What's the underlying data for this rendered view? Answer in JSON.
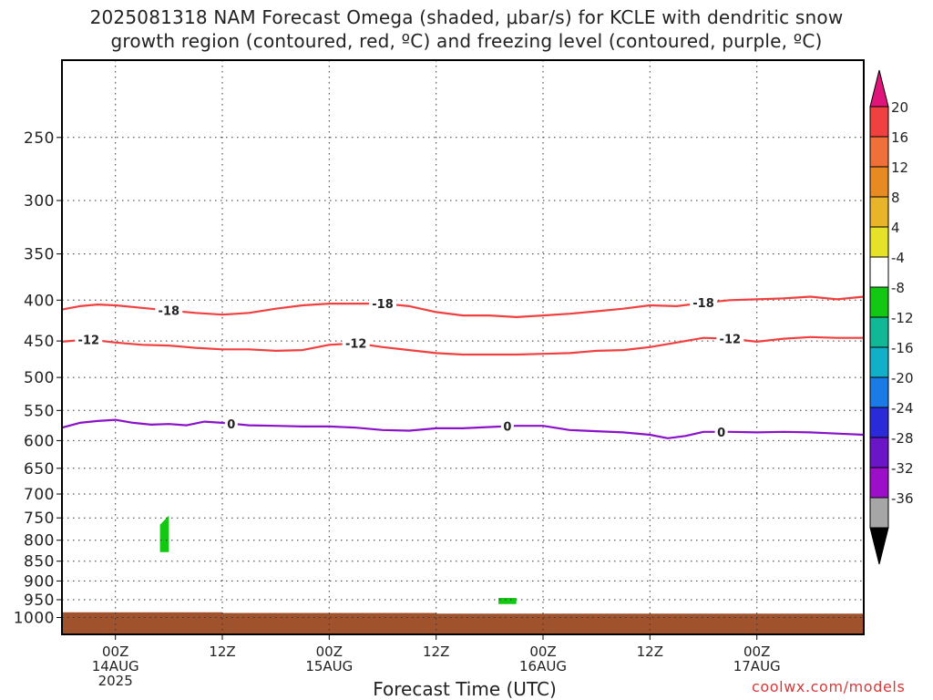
{
  "title": {
    "line1": "2025081318 NAM Forecast Omega (shaded, μbar/s) for KCLE with dendritic snow",
    "line2": "growth region (contoured, red, ºC) and freezing level (contoured, purple, ºC)"
  },
  "credit": "coolwx.com/models",
  "chart_data": {
    "type": "contour",
    "xlabel": "Forecast Time (UTC)",
    "ylabel": "",
    "y_scale": "log-pressure",
    "y_inverted": true,
    "ylim": [
      1050,
      200
    ],
    "xlim": [
      "2025-08-13T18Z",
      "2025-08-17T12Z"
    ],
    "grid": true,
    "y_ticks": [
      250,
      300,
      350,
      400,
      450,
      500,
      550,
      600,
      650,
      700,
      750,
      800,
      850,
      900,
      950,
      1000
    ],
    "x_ticks": [
      {
        "time": "2025-08-14T00Z",
        "lines": [
          "00Z",
          "14AUG",
          "2025"
        ]
      },
      {
        "time": "2025-08-14T12Z",
        "lines": [
          "12Z"
        ]
      },
      {
        "time": "2025-08-15T00Z",
        "lines": [
          "00Z",
          "15AUG"
        ]
      },
      {
        "time": "2025-08-15T12Z",
        "lines": [
          "12Z"
        ]
      },
      {
        "time": "2025-08-16T00Z",
        "lines": [
          "00Z",
          "16AUG"
        ]
      },
      {
        "time": "2025-08-16T12Z",
        "lines": [
          "12Z"
        ]
      },
      {
        "time": "2025-08-17T00Z",
        "lines": [
          "00Z",
          "17AUG"
        ]
      }
    ],
    "contours": [
      {
        "name": "-18",
        "color": "#f04040",
        "label_times": [
          "2025-08-14T06Z",
          "2025-08-15T06Z",
          "2025-08-16T18Z"
        ],
        "points": [
          [
            "2025-08-13T18Z",
            411
          ],
          [
            "2025-08-13T20Z",
            407
          ],
          [
            "2025-08-13T22Z",
            405
          ],
          [
            "2025-08-14T00Z",
            406
          ],
          [
            "2025-08-14T03Z",
            409
          ],
          [
            "2025-08-14T06Z",
            412
          ],
          [
            "2025-08-14T09Z",
            415
          ],
          [
            "2025-08-14T12Z",
            417
          ],
          [
            "2025-08-14T15Z",
            415
          ],
          [
            "2025-08-14T18Z",
            410
          ],
          [
            "2025-08-14T21Z",
            406
          ],
          [
            "2025-08-15T00Z",
            404
          ],
          [
            "2025-08-15T03Z",
            404
          ],
          [
            "2025-08-15T06Z",
            404
          ],
          [
            "2025-08-15T09Z",
            407
          ],
          [
            "2025-08-15T12Z",
            414
          ],
          [
            "2025-08-15T15Z",
            418
          ],
          [
            "2025-08-15T18Z",
            418
          ],
          [
            "2025-08-15T21Z",
            420
          ],
          [
            "2025-08-16T00Z",
            418
          ],
          [
            "2025-08-16T03Z",
            416
          ],
          [
            "2025-08-16T06Z",
            413
          ],
          [
            "2025-08-16T09Z",
            410
          ],
          [
            "2025-08-16T12Z",
            406
          ],
          [
            "2025-08-16T15Z",
            407
          ],
          [
            "2025-08-16T18Z",
            403
          ],
          [
            "2025-08-16T21Z",
            400
          ],
          [
            "2025-08-17T00Z",
            399
          ],
          [
            "2025-08-17T03Z",
            398
          ],
          [
            "2025-08-17T06Z",
            396
          ],
          [
            "2025-08-17T09Z",
            399
          ],
          [
            "2025-08-17T12Z",
            396
          ]
        ]
      },
      {
        "name": "-12",
        "color": "#f04040",
        "label_times": [
          "2025-08-13T21Z",
          "2025-08-15T03Z",
          "2025-08-16T21Z"
        ],
        "points": [
          [
            "2025-08-13T18Z",
            451
          ],
          [
            "2025-08-13T21Z",
            448
          ],
          [
            "2025-08-14T00Z",
            452
          ],
          [
            "2025-08-14T03Z",
            455
          ],
          [
            "2025-08-14T06Z",
            456
          ],
          [
            "2025-08-14T09Z",
            459
          ],
          [
            "2025-08-14T12Z",
            461
          ],
          [
            "2025-08-14T15Z",
            461
          ],
          [
            "2025-08-14T18Z",
            463
          ],
          [
            "2025-08-14T21Z",
            462
          ],
          [
            "2025-08-15T00Z",
            455
          ],
          [
            "2025-08-15T03Z",
            453
          ],
          [
            "2025-08-15T06Z",
            458
          ],
          [
            "2025-08-15T09Z",
            462
          ],
          [
            "2025-08-15T12Z",
            466
          ],
          [
            "2025-08-15T15Z",
            468
          ],
          [
            "2025-08-15T18Z",
            468
          ],
          [
            "2025-08-15T21Z",
            468
          ],
          [
            "2025-08-16T00Z",
            467
          ],
          [
            "2025-08-16T03Z",
            466
          ],
          [
            "2025-08-16T06Z",
            463
          ],
          [
            "2025-08-16T09Z",
            462
          ],
          [
            "2025-08-16T12Z",
            458
          ],
          [
            "2025-08-16T15Z",
            452
          ],
          [
            "2025-08-16T18Z",
            446
          ],
          [
            "2025-08-16T21Z",
            447
          ],
          [
            "2025-08-17T00Z",
            451
          ],
          [
            "2025-08-17T03Z",
            447
          ],
          [
            "2025-08-17T06Z",
            445
          ],
          [
            "2025-08-17T09Z",
            446
          ],
          [
            "2025-08-17T12Z",
            446
          ]
        ]
      },
      {
        "name": "0",
        "color": "#8a12c8",
        "label_times": [
          "2025-08-14T13Z",
          "2025-08-15T20Z",
          "2025-08-16T20Z"
        ],
        "points": [
          [
            "2025-08-13T18Z",
            578
          ],
          [
            "2025-08-13T20Z",
            570
          ],
          [
            "2025-08-13T22Z",
            567
          ],
          [
            "2025-08-14T00Z",
            565
          ],
          [
            "2025-08-14T02Z",
            570
          ],
          [
            "2025-08-14T04Z",
            573
          ],
          [
            "2025-08-14T06Z",
            572
          ],
          [
            "2025-08-14T08Z",
            574
          ],
          [
            "2025-08-14T10Z",
            568
          ],
          [
            "2025-08-14T12Z",
            570
          ],
          [
            "2025-08-14T15Z",
            574
          ],
          [
            "2025-08-14T18Z",
            575
          ],
          [
            "2025-08-14T21Z",
            576
          ],
          [
            "2025-08-15T00Z",
            576
          ],
          [
            "2025-08-15T03Z",
            578
          ],
          [
            "2025-08-15T06Z",
            582
          ],
          [
            "2025-08-15T09Z",
            583
          ],
          [
            "2025-08-15T12Z",
            579
          ],
          [
            "2025-08-15T15Z",
            579
          ],
          [
            "2025-08-15T18Z",
            577
          ],
          [
            "2025-08-15T21Z",
            575
          ],
          [
            "2025-08-16T00Z",
            575
          ],
          [
            "2025-08-16T03Z",
            582
          ],
          [
            "2025-08-16T06Z",
            584
          ],
          [
            "2025-08-16T09Z",
            586
          ],
          [
            "2025-08-16T12Z",
            590
          ],
          [
            "2025-08-16T14Z",
            596
          ],
          [
            "2025-08-16T16Z",
            592
          ],
          [
            "2025-08-16T18Z",
            585
          ],
          [
            "2025-08-16T21Z",
            585
          ],
          [
            "2025-08-17T00Z",
            586
          ],
          [
            "2025-08-17T03Z",
            585
          ],
          [
            "2025-08-17T06Z",
            586
          ],
          [
            "2025-08-17T09Z",
            588
          ],
          [
            "2025-08-17T12Z",
            590
          ]
        ]
      }
    ],
    "shaded_regions": [
      {
        "value_range": [
          -8,
          -4
        ],
        "color": "#13c813",
        "polygon": [
          [
            "2025-08-14T05Z",
            828
          ],
          [
            "2025-08-14T05Z",
            765
          ],
          [
            "2025-08-14T06Z",
            745
          ],
          [
            "2025-08-14T06Z",
            828
          ]
        ]
      },
      {
        "value_range": [
          -8,
          -4
        ],
        "color": "#13c813",
        "polygon": [
          [
            "2025-08-15T19Z",
            945
          ],
          [
            "2025-08-15T21Z",
            945
          ],
          [
            "2025-08-15T21Z",
            962
          ],
          [
            "2025-08-15T19Z",
            962
          ]
        ]
      }
    ],
    "terrain": {
      "color": "#a0522d",
      "surface": [
        [
          "2025-08-13T18Z",
          985
        ],
        [
          "2025-08-14T12Z",
          985
        ],
        [
          "2025-08-14T12Z",
          987
        ],
        [
          "2025-08-15T12Z",
          987
        ],
        [
          "2025-08-15T12Z",
          989
        ],
        [
          "2025-08-17T12Z",
          989
        ]
      ]
    },
    "colorbar": {
      "levels": [
        -36,
        -32,
        -28,
        -24,
        -20,
        -16,
        -12,
        -8,
        -4,
        4,
        8,
        12,
        16,
        20
      ],
      "label_values": [
        20,
        16,
        12,
        8,
        4,
        -4,
        -8,
        -12,
        -16,
        -20,
        -24,
        -28,
        -32,
        -36
      ],
      "colors": [
        "#a6a6a6",
        "#9b0fc8",
        "#6a15c8",
        "#2a2ad8",
        "#1a7ae6",
        "#12b0c8",
        "#12b896",
        "#13c813",
        "#ffffff",
        "#e6e22a",
        "#e8b42a",
        "#e88a22",
        "#f0703a",
        "#f04040"
      ],
      "over_color": "#e0157a",
      "under_color": "#000000"
    }
  }
}
